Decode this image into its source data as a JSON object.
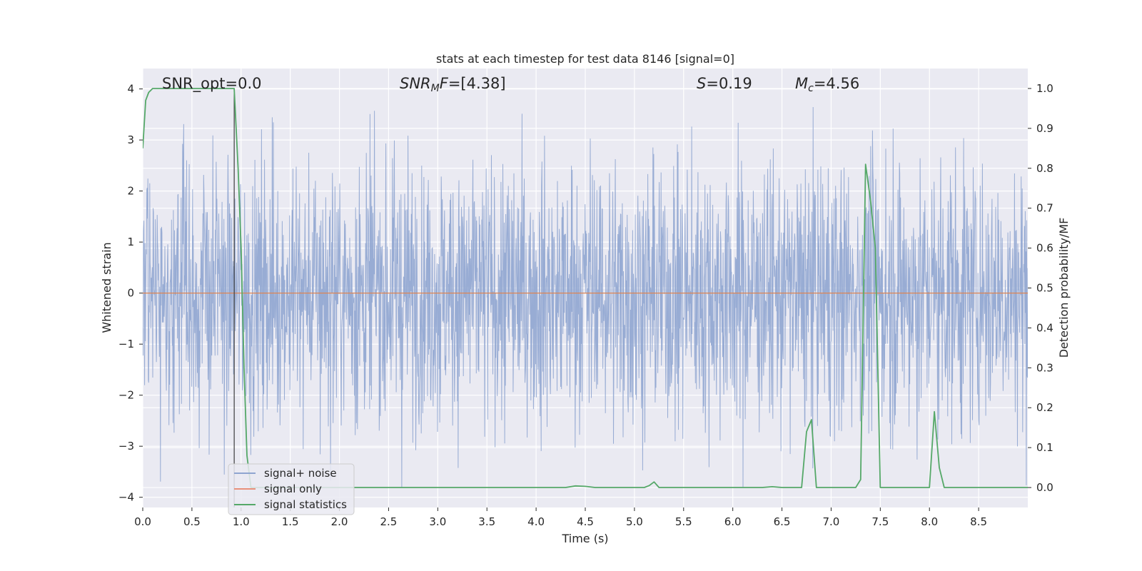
{
  "chart_data": {
    "type": "line",
    "title": "stats at each timestep for test data 8146 [signal=0]",
    "xlabel": "Time (s)",
    "ylabel": "Whitened strain",
    "y2label": "Detection probability/MF",
    "xlim": [
      0.0,
      9.0
    ],
    "ylim": [
      -4.2,
      4.4
    ],
    "y2lim": [
      -0.05,
      1.05
    ],
    "x_ticks": [
      "0.0",
      "0.5",
      "1.0",
      "1.5",
      "2.0",
      "2.5",
      "3.0",
      "3.5",
      "4.0",
      "4.5",
      "5.0",
      "5.5",
      "6.0",
      "6.5",
      "7.0",
      "7.5",
      "8.0",
      "8.5"
    ],
    "y_ticks": [
      "4",
      "3",
      "2",
      "1",
      "0",
      "−1",
      "−2",
      "−3",
      "−4"
    ],
    "y2_ticks": [
      "1.0",
      "0.9",
      "0.8",
      "0.7",
      "0.6",
      "0.5",
      "0.4",
      "0.3",
      "0.2",
      "0.1",
      "0.0"
    ],
    "grid": true,
    "legend_position": "lower-left",
    "annotations": {
      "snr_opt": "SNR_opt=0.0",
      "snr_mf": "=[4.38]",
      "s": "=0.19",
      "mc": "=4.56"
    },
    "legend": [
      {
        "label": "signal+ noise",
        "color": "#8fa5d0"
      },
      {
        "label": "signal only",
        "color": "#e8907a"
      },
      {
        "label": "signal statistics",
        "color": "#55a868"
      }
    ],
    "colors": {
      "noise": "#8fa5d0",
      "signal": "#dd8452",
      "stats": "#55a868",
      "background": "#eaeaf2",
      "grid": "#ffffff",
      "marker": "#3d3d3d"
    },
    "marker_x": 0.93,
    "noise_band": {
      "duration_s": 9.0,
      "typical_amplitude": 1.3,
      "min": -3.8,
      "max": 4.0
    },
    "series": [
      {
        "name": "signal statistics",
        "axis": "right",
        "x": [
          0.0,
          0.03,
          0.06,
          0.1,
          0.2,
          0.3,
          0.4,
          0.5,
          0.6,
          0.7,
          0.8,
          0.9,
          0.93,
          0.97,
          1.0,
          1.03,
          1.06,
          1.1,
          1.2,
          1.5,
          2.0,
          2.5,
          3.0,
          3.5,
          4.0,
          4.3,
          4.4,
          4.5,
          4.6,
          5.0,
          5.1,
          5.15,
          5.2,
          5.25,
          5.3,
          5.5,
          6.0,
          6.3,
          6.4,
          6.5,
          6.7,
          6.75,
          6.8,
          6.85,
          7.0,
          7.25,
          7.3,
          7.35,
          7.4,
          7.45,
          7.5,
          7.55,
          7.6,
          7.9,
          8.0,
          8.05,
          8.1,
          8.15,
          8.2,
          8.5,
          9.0
        ],
        "y": [
          0.85,
          0.97,
          0.99,
          1.0,
          1.0,
          1.0,
          1.0,
          1.0,
          1.0,
          1.0,
          1.0,
          1.0,
          1.0,
          0.8,
          0.6,
          0.3,
          0.08,
          0.0,
          0.0,
          0.0,
          0.0,
          0.0,
          0.0,
          0.0,
          0.0,
          0.0,
          0.004,
          0.003,
          0.0,
          0.0,
          0.0,
          0.005,
          0.014,
          0.0,
          0.0,
          0.0,
          0.0,
          0.0,
          0.002,
          0.0,
          0.0,
          0.14,
          0.17,
          0.0,
          0.0,
          0.0,
          0.02,
          0.81,
          0.72,
          0.6,
          0.0,
          0.0,
          0.0,
          0.0,
          0.0,
          0.19,
          0.05,
          0.0,
          0.0,
          0.0,
          0.0
        ]
      },
      {
        "name": "signal only",
        "axis": "left",
        "x": [
          0.0,
          9.0
        ],
        "y": [
          0.0,
          0.0
        ]
      }
    ]
  }
}
